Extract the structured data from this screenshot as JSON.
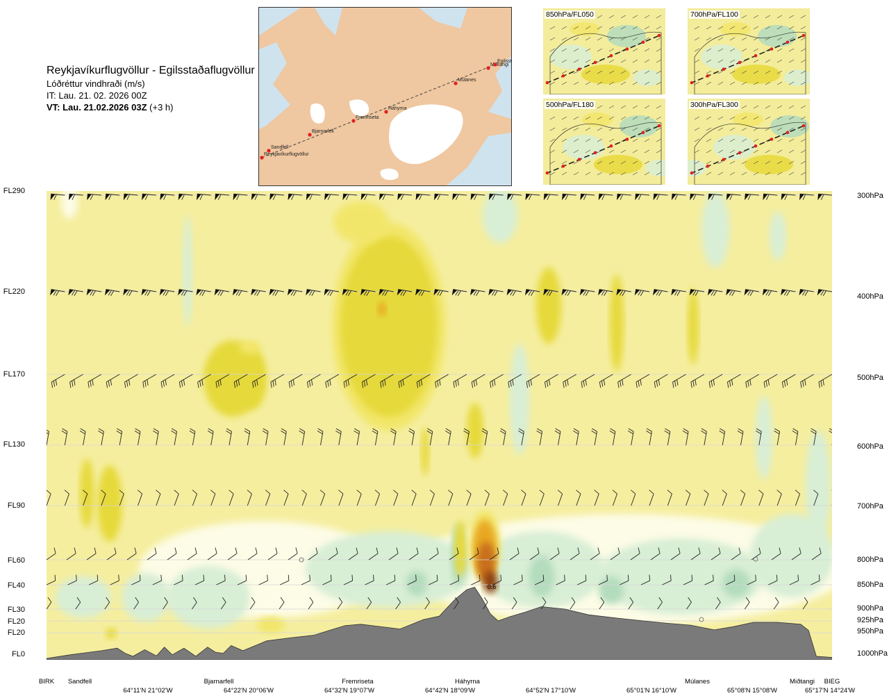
{
  "header": {
    "title": "Reykjavíkurflugvöllur - Egilsstaðaflugvöllur",
    "subtitle": "Lóðréttur vindhraði (m/s)",
    "it": "IT: Lau. 21. 02. 2026 00Z",
    "vt_bold": "VT: Lau. 21.02.2026 03Z",
    "vt_rest": " (+3 h)"
  },
  "route_map": {
    "stations": [
      "Reykjavíkurflugvöllur",
      "Sandfell",
      "Bjarnarfell",
      "Fremriseta",
      "Háhyrna",
      "Múlanes",
      "Miðtangi",
      "Egilsst."
    ]
  },
  "mini_maps": [
    {
      "label": "850hPa/FL050"
    },
    {
      "label": "700hPa/FL100"
    },
    {
      "label": "500hPa/FL180"
    },
    {
      "label": "300hPa/FL300"
    }
  ],
  "chart_data": {
    "type": "heatmap",
    "title": "Reykjavíkurflugvöllur - Egilsstaðaflugvöllur",
    "variable": "Lóðréttur vindhraði (m/s)",
    "flight_levels": [
      "FL290",
      "FL220",
      "FL170",
      "FL130",
      "FL90",
      "FL60",
      "FL40",
      "FL30",
      "FL20",
      "FL20",
      "FL0"
    ],
    "pressure_levels": [
      "300hPa",
      "400hPa",
      "500hPa",
      "600hPa",
      "700hPa",
      "800hPa",
      "850hPa",
      "900hPa",
      "925hPa",
      "950hPa",
      "1000hPa"
    ],
    "places": [
      "BIRK",
      "Sandfell",
      "Bjarnarfell",
      "Fremriseta",
      "Háhyrna",
      "Múlanes",
      "Miðtangi",
      "BIEG"
    ],
    "coordinates": [
      "64°11'N 21°02'W",
      "64°22'N 20°06'W",
      "64°32'N 19°07'W",
      "64°42'N 18°09'W",
      "64°52'N 17°10'W",
      "65°01'N 16°10'W",
      "65°08'N 15°08'W",
      "65°17'N 14°24'W"
    ],
    "max_label": "0.6",
    "colors": {
      "background": "#f5ee9f",
      "light_up": "#f2e66a",
      "up": "#e6d93a",
      "strong_up": "#e8a820",
      "very_strong_up": "#c7701c",
      "extreme_up": "#8e3f0e",
      "weak_down": "#fdfce6",
      "down": "#d8eed5",
      "strong_down": "#b3dcbd",
      "very_strong_down": "#7fc29a",
      "terrain": "#7a7a7a",
      "gridline": "#d6d6d6"
    },
    "terrain_profile": {
      "distance_fraction": [
        0,
        0.03,
        0.07,
        0.09,
        0.1,
        0.11,
        0.125,
        0.14,
        0.15,
        0.16,
        0.175,
        0.19,
        0.205,
        0.215,
        0.225,
        0.235,
        0.25,
        0.28,
        0.31,
        0.34,
        0.36,
        0.38,
        0.4,
        0.42,
        0.45,
        0.48,
        0.5,
        0.52,
        0.535,
        0.545,
        0.555,
        0.565,
        0.575,
        0.59,
        0.61,
        0.63,
        0.66,
        0.69,
        0.72,
        0.76,
        0.79,
        0.82,
        0.85,
        0.875,
        0.9,
        0.93,
        0.96,
        0.97,
        0.98,
        1
      ],
      "pressure_hpa": [
        1000,
        993,
        985,
        980,
        990,
        996,
        983,
        995,
        978,
        993,
        980,
        996,
        978,
        988,
        990,
        975,
        985,
        966,
        960,
        955,
        945,
        935,
        932,
        936,
        942,
        922,
        915,
        880,
        860,
        855,
        880,
        910,
        925,
        916,
        906,
        895,
        900,
        912,
        918,
        925,
        930,
        934,
        944,
        937,
        928,
        928,
        932,
        945,
        996,
        998
      ]
    }
  }
}
